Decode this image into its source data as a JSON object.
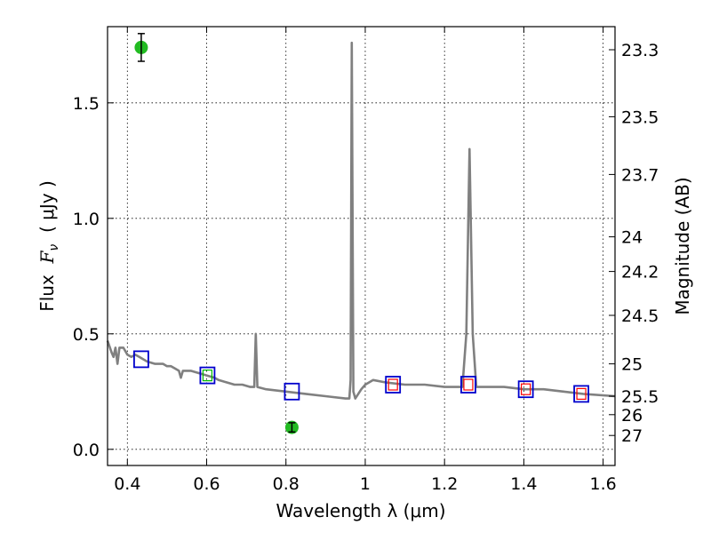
{
  "chart_data": {
    "type": "line",
    "xlabel": "Wavelength  λ (μm)",
    "ylabel": "Flux  F_ν  ( μJy )",
    "ylabel_parts": {
      "prefix": "Flux  ",
      "symbol": "F",
      "subscript": "ν",
      "suffix": "  ( μJy )"
    },
    "ylabel_right": "Magnitude (AB)",
    "xlim": [
      0.35,
      1.63
    ],
    "ylim": [
      -0.07,
      1.83
    ],
    "grid": true,
    "x_ticks": [
      0.4,
      0.6,
      0.8,
      1.0,
      1.2,
      1.4,
      1.6
    ],
    "x_tick_labels": [
      "0.4",
      "0.6",
      "0.8",
      "1",
      "1.2",
      "1.4",
      "1.6"
    ],
    "y_ticks": [
      0.0,
      0.5,
      1.0,
      1.5
    ],
    "y_tick_labels": [
      "0.0",
      "0.5",
      "1.0",
      "1.5"
    ],
    "right_ticks": [
      {
        "label": "23.3",
        "flux": 1.73
      },
      {
        "label": "23.5",
        "flux": 1.44
      },
      {
        "label": "23.7",
        "flux": 1.19
      },
      {
        "label": "24",
        "flux": 0.92
      },
      {
        "label": "24.2",
        "flux": 0.77
      },
      {
        "label": "24.5",
        "flux": 0.58
      },
      {
        "label": "25",
        "flux": 0.37
      },
      {
        "label": "25.5",
        "flux": 0.23
      },
      {
        "label": "26",
        "flux": 0.15
      },
      {
        "label": "27",
        "flux": 0.06
      }
    ],
    "series": [
      {
        "kind": "spectrum",
        "color": "#808080",
        "points": [
          [
            0.35,
            0.47
          ],
          [
            0.36,
            0.42
          ],
          [
            0.365,
            0.4
          ],
          [
            0.37,
            0.44
          ],
          [
            0.375,
            0.37
          ],
          [
            0.38,
            0.44
          ],
          [
            0.39,
            0.44
          ],
          [
            0.4,
            0.41
          ],
          [
            0.41,
            0.4
          ],
          [
            0.42,
            0.41
          ],
          [
            0.43,
            0.4
          ],
          [
            0.44,
            0.39
          ],
          [
            0.45,
            0.38
          ],
          [
            0.47,
            0.37
          ],
          [
            0.49,
            0.37
          ],
          [
            0.5,
            0.36
          ],
          [
            0.51,
            0.36
          ],
          [
            0.52,
            0.35
          ],
          [
            0.53,
            0.34
          ],
          [
            0.535,
            0.31
          ],
          [
            0.54,
            0.34
          ],
          [
            0.56,
            0.34
          ],
          [
            0.58,
            0.33
          ],
          [
            0.6,
            0.32
          ],
          [
            0.62,
            0.31
          ],
          [
            0.63,
            0.3
          ],
          [
            0.65,
            0.29
          ],
          [
            0.67,
            0.28
          ],
          [
            0.69,
            0.28
          ],
          [
            0.71,
            0.27
          ],
          [
            0.72,
            0.27
          ],
          [
            0.724,
            0.5
          ],
          [
            0.728,
            0.27
          ],
          [
            0.75,
            0.26
          ],
          [
            0.8,
            0.25
          ],
          [
            0.85,
            0.24
          ],
          [
            0.9,
            0.23
          ],
          [
            0.95,
            0.22
          ],
          [
            0.96,
            0.22
          ],
          [
            0.963,
            0.3
          ],
          [
            0.966,
            1.76
          ],
          [
            0.97,
            0.25
          ],
          [
            0.975,
            0.22
          ],
          [
            0.99,
            0.26
          ],
          [
            1.0,
            0.28
          ],
          [
            1.02,
            0.3
          ],
          [
            1.05,
            0.29
          ],
          [
            1.1,
            0.28
          ],
          [
            1.15,
            0.28
          ],
          [
            1.2,
            0.27
          ],
          [
            1.245,
            0.27
          ],
          [
            1.255,
            0.5
          ],
          [
            1.263,
            1.3
          ],
          [
            1.271,
            0.5
          ],
          [
            1.28,
            0.27
          ],
          [
            1.35,
            0.27
          ],
          [
            1.4,
            0.26
          ],
          [
            1.45,
            0.26
          ],
          [
            1.5,
            0.25
          ],
          [
            1.55,
            0.24
          ],
          [
            1.63,
            0.23
          ]
        ]
      },
      {
        "kind": "model_boxes",
        "color": "#0000cc",
        "points": [
          [
            0.435,
            0.39
          ],
          [
            0.602,
            0.32
          ],
          [
            0.815,
            0.25
          ],
          [
            1.07,
            0.28
          ],
          [
            1.26,
            0.28
          ],
          [
            1.405,
            0.26
          ],
          [
            1.545,
            0.24
          ]
        ]
      },
      {
        "kind": "red_squares",
        "color": "#ff0000",
        "points": [
          [
            1.07,
            0.28
          ],
          [
            1.26,
            0.28
          ],
          [
            1.405,
            0.26
          ],
          [
            1.545,
            0.24
          ]
        ]
      },
      {
        "kind": "green_square",
        "color": "#00bb00",
        "points": [
          [
            0.602,
            0.32
          ]
        ]
      },
      {
        "kind": "observed_points",
        "color": "#22bb22",
        "points": [
          {
            "x": 0.435,
            "y": 1.74,
            "err": 0.06
          },
          {
            "x": 0.815,
            "y": 0.095,
            "err": 0.02
          }
        ]
      }
    ]
  }
}
